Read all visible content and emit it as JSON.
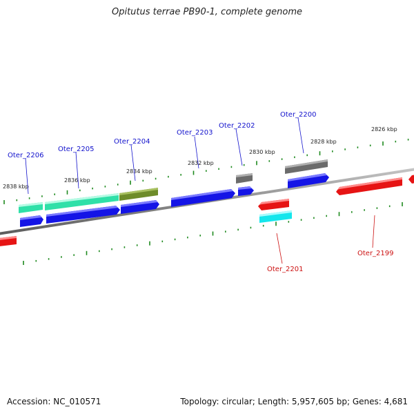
{
  "title": "Opitutus terrae PB90-1, complete genome",
  "accession": "Accession: NC_010571",
  "summary": "Topology: circular; Length: 5,957,605 bp; Genes: 4,681",
  "colors": {
    "backbone": "#8c8c8c",
    "tick": "#1f8a1f",
    "label_forward": "#1010cc",
    "label_reverse": "#cc1010",
    "blue": "#1414e6",
    "red": "#e61414",
    "gray": "#6b6b6b",
    "teal": "#2fe0a8",
    "olive": "#6e8c2a",
    "cyan": "#14e6ec"
  },
  "scale_labels": [
    {
      "text": "2838 kbp"
    },
    {
      "text": "2836 kbp"
    },
    {
      "text": "2834 kbp"
    },
    {
      "text": "2832 kbp"
    },
    {
      "text": "2830 kbp"
    },
    {
      "text": "2828 kbp"
    },
    {
      "text": "2826 kbp"
    }
  ],
  "gene_labels": [
    {
      "text": "Oter_2206",
      "strand": "forward"
    },
    {
      "text": "Oter_2205",
      "strand": "forward"
    },
    {
      "text": "Oter_2204",
      "strand": "forward"
    },
    {
      "text": "Oter_2203",
      "strand": "forward"
    },
    {
      "text": "Oter_2202",
      "strand": "forward"
    },
    {
      "text": "Oter_2200",
      "strand": "forward"
    },
    {
      "text": "Oter_2201",
      "strand": "reverse"
    },
    {
      "text": "Oter_2199",
      "strand": "reverse"
    }
  ]
}
